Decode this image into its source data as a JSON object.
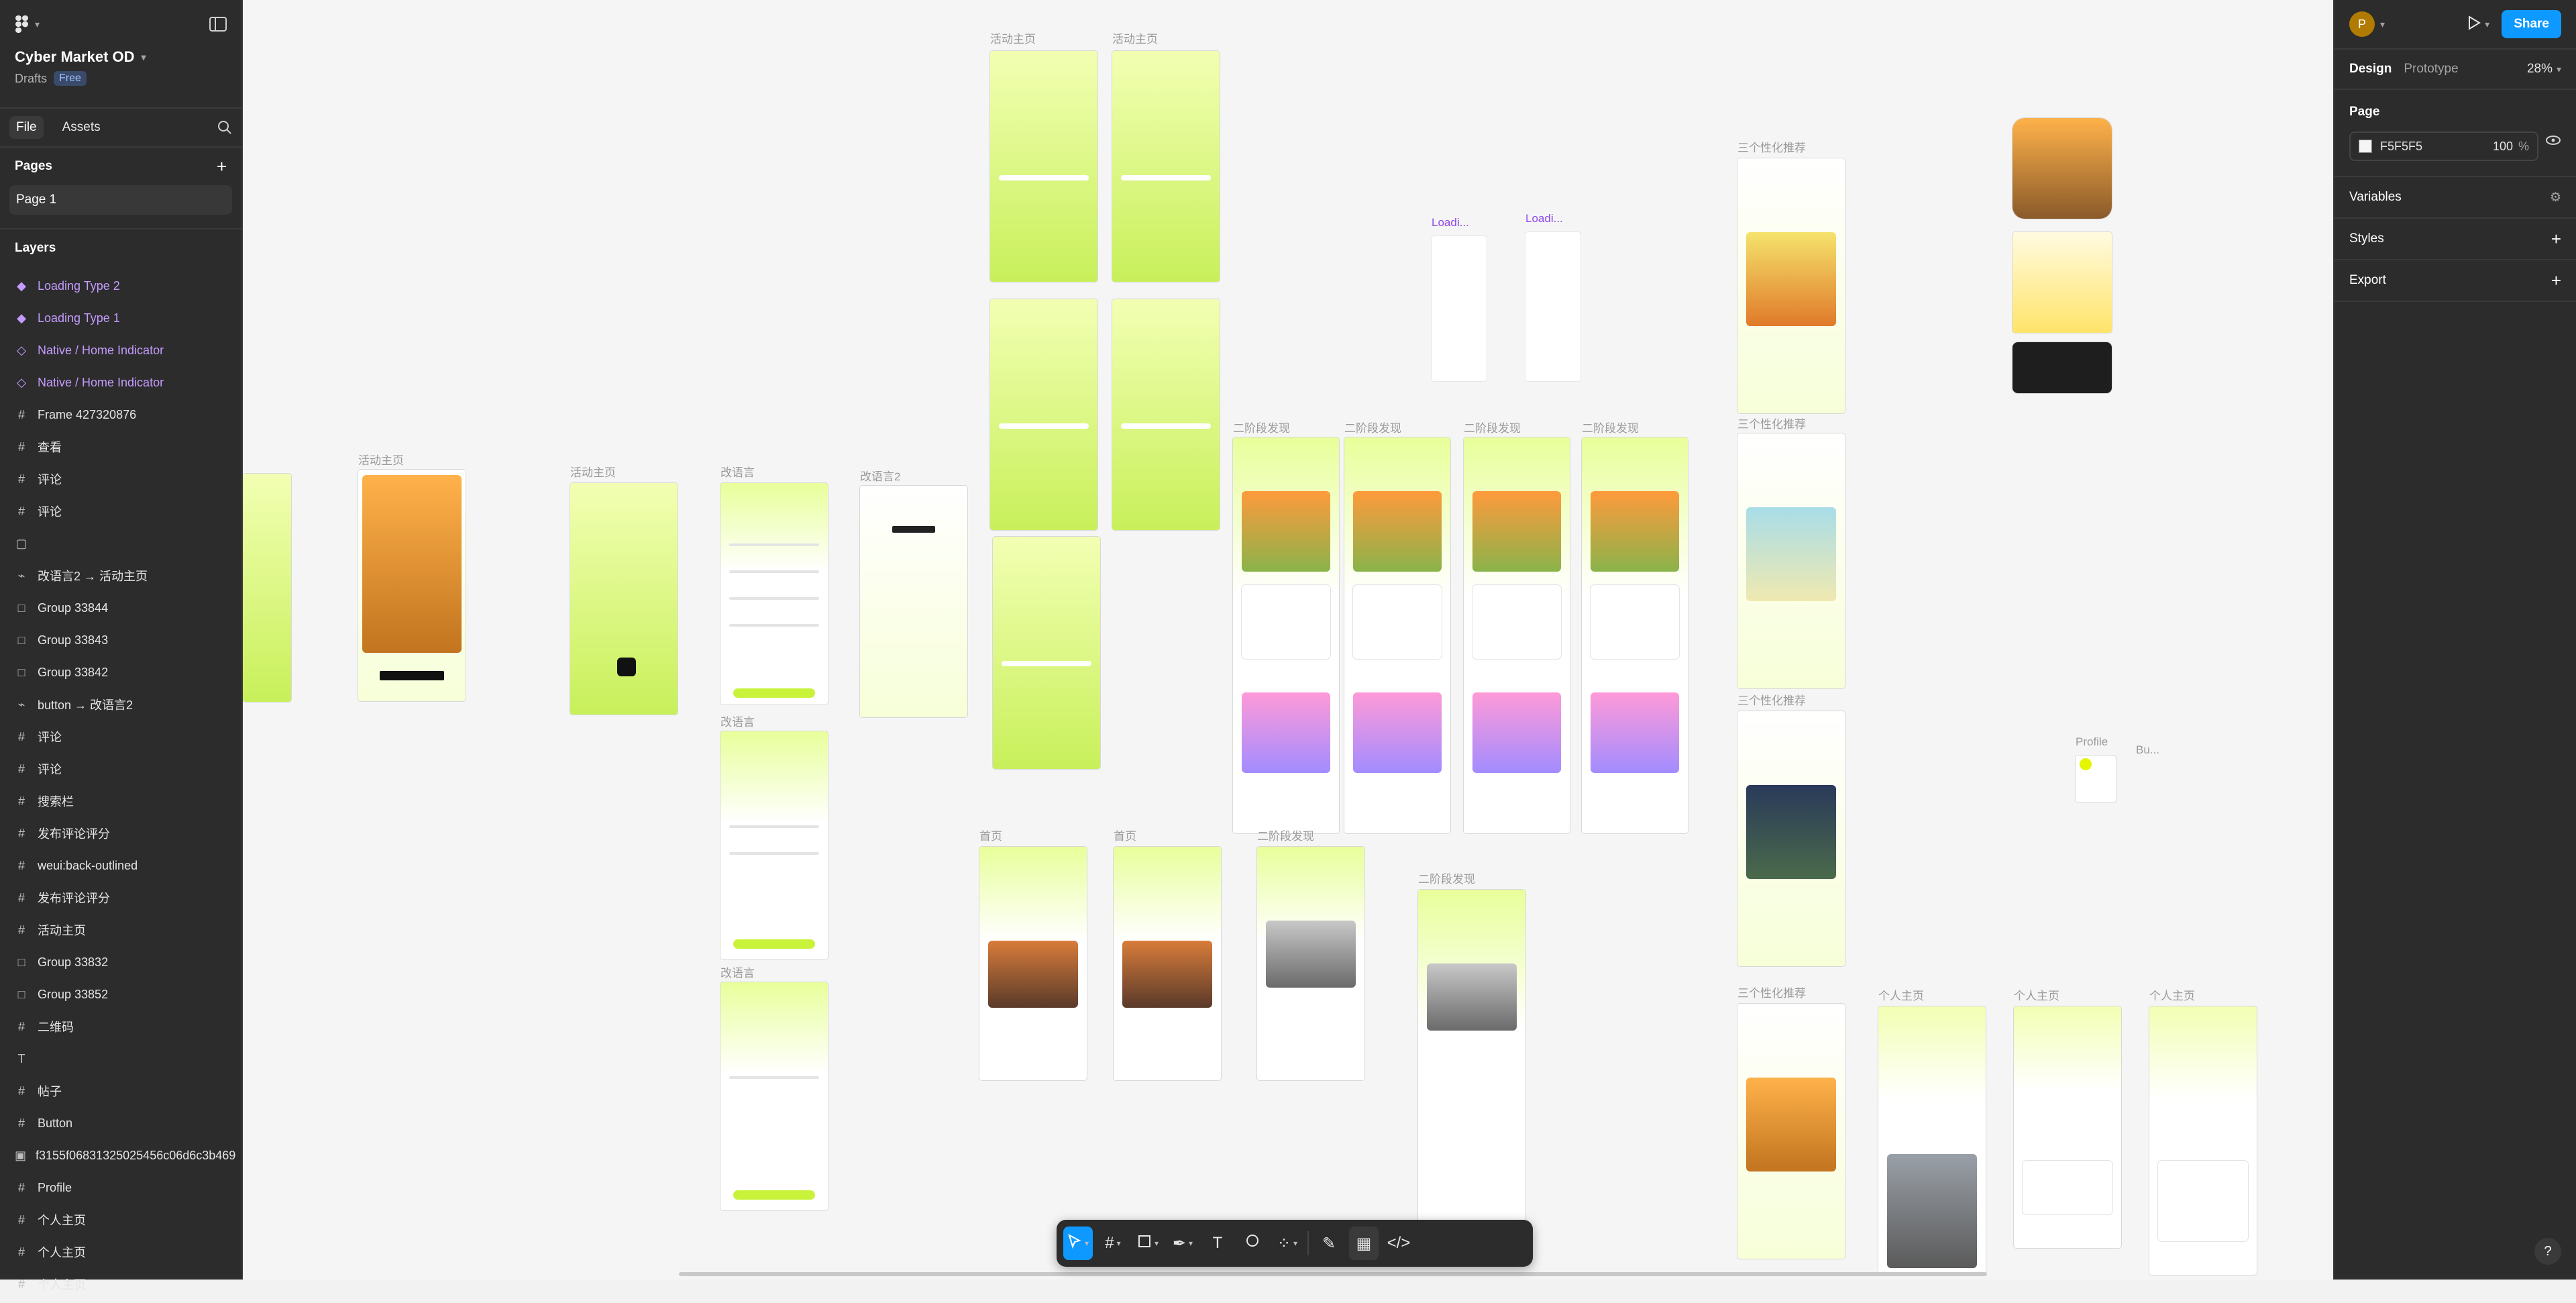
{
  "project": {
    "name": "Cyber Market OD",
    "location": "Drafts",
    "plan": "Free"
  },
  "left_tabs": {
    "file": "File",
    "assets": "Assets"
  },
  "pages": {
    "title": "Pages",
    "items": [
      "Page 1"
    ]
  },
  "layers": {
    "title": "Layers",
    "items": [
      {
        "label": "Loading Type 2",
        "kind": "component"
      },
      {
        "label": "Loading Type 1",
        "kind": "component"
      },
      {
        "label": "Native / Home Indicator",
        "kind": "instance"
      },
      {
        "label": "Native / Home Indicator",
        "kind": "instance"
      },
      {
        "label": "Frame 427320876",
        "kind": "frame"
      },
      {
        "label": "查看",
        "kind": "frame"
      },
      {
        "label": "评论",
        "kind": "frame"
      },
      {
        "label": "评论",
        "kind": "frame"
      },
      {
        "label": "",
        "kind": "section"
      },
      {
        "label": "改语言2 → 活动主页",
        "kind": "connector"
      },
      {
        "label": "Group 33844",
        "kind": "group"
      },
      {
        "label": "Group 33843",
        "kind": "group"
      },
      {
        "label": "Group 33842",
        "kind": "group"
      },
      {
        "label": "button → 改语言2",
        "kind": "connector"
      },
      {
        "label": "评论",
        "kind": "frame"
      },
      {
        "label": "评论",
        "kind": "frame"
      },
      {
        "label": "搜索栏",
        "kind": "frame"
      },
      {
        "label": "发布评论评分",
        "kind": "frame"
      },
      {
        "label": "weui:back-outlined",
        "kind": "frame"
      },
      {
        "label": "发布评论评分",
        "kind": "frame"
      },
      {
        "label": "活动主页",
        "kind": "frame"
      },
      {
        "label": "Group 33832",
        "kind": "group"
      },
      {
        "label": "Group 33852",
        "kind": "group"
      },
      {
        "label": "二维码",
        "kind": "frame"
      },
      {
        "label": "",
        "kind": "text"
      },
      {
        "label": "帖子",
        "kind": "frame"
      },
      {
        "label": "Button",
        "kind": "frame"
      },
      {
        "label": "f3155f06831325025456c06d6c3b469",
        "kind": "image"
      },
      {
        "label": "Profile",
        "kind": "frame"
      },
      {
        "label": "个人主页",
        "kind": "frame"
      },
      {
        "label": "个人主页",
        "kind": "frame"
      },
      {
        "label": "个人主页",
        "kind": "frame"
      }
    ]
  },
  "right_panel": {
    "user_initial": "P",
    "share_label": "Share",
    "tabs": {
      "design": "Design",
      "prototype": "Prototype"
    },
    "zoom": "28%",
    "page_section": "Page",
    "page_color": "F5F5F5",
    "page_opacity": "100",
    "percent_sign": "%",
    "variables": "Variables",
    "styles": "Styles",
    "export": "Export"
  },
  "canvas_labels": {
    "activity_home": "活动主页",
    "change_lang": "改语言",
    "change_lang2": "改语言2",
    "second_hand": "二阶段发现",
    "three_recs": "三个性化推荐",
    "homepage": "首页",
    "personal_home": "个人主页",
    "loading": "Loadi...",
    "profile": "Profile",
    "bu": "Bu..."
  },
  "toolbar": {
    "text_tool": "T"
  },
  "help": "?"
}
